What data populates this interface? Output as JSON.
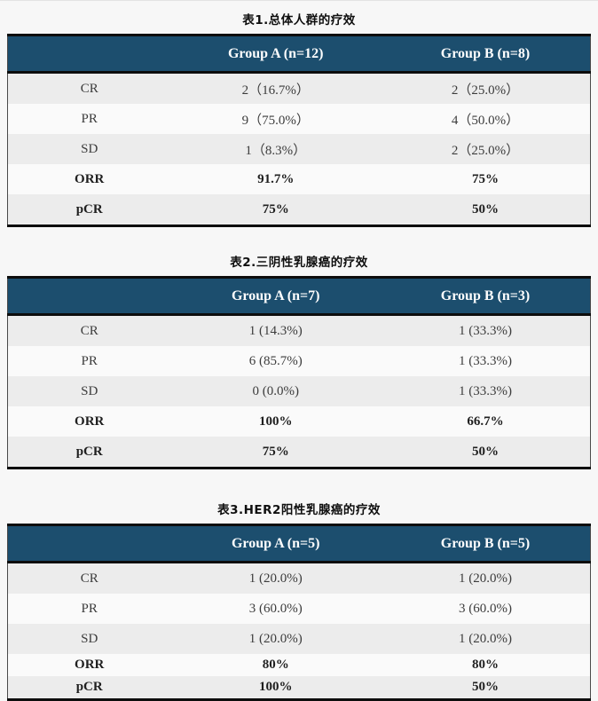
{
  "colors": {
    "header_bg": "#1c4e6e",
    "header_text": "#ffffff",
    "row_shaded": "#ececec",
    "row_plain": "#fafafa",
    "border_dark": "#0d0d0d",
    "body_text": "#3c3c3c",
    "page_bg": "#f7f7f7"
  },
  "tables": [
    {
      "title": "表1.总体人群的疗效",
      "columns": [
        "",
        "Group A (n=12)",
        "Group B (n=8)"
      ],
      "rows": [
        {
          "label": "CR",
          "a": "2（16.7%）",
          "b": "2（25.0%）"
        },
        {
          "label": "PR",
          "a": "9（75.0%）",
          "b": "4（50.0%）"
        },
        {
          "label": "SD",
          "a": "1（8.3%）",
          "b": "2（25.0%）"
        },
        {
          "label": "ORR",
          "a": "91.7%",
          "b": "75%"
        },
        {
          "label": "pCR",
          "a": "75%",
          "b": "50%"
        }
      ]
    },
    {
      "title": "表2.三阴性乳腺癌的疗效",
      "columns": [
        "",
        "Group A (n=7)",
        "Group B (n=3)"
      ],
      "rows": [
        {
          "label": "CR",
          "a": "1 (14.3%)",
          "b": "1 (33.3%)"
        },
        {
          "label": "PR",
          "a": "6 (85.7%)",
          "b": "1 (33.3%)"
        },
        {
          "label": "SD",
          "a": "0 (0.0%)",
          "b": "1 (33.3%)"
        },
        {
          "label": "ORR",
          "a": "100%",
          "b": "66.7%"
        },
        {
          "label": "pCR",
          "a": "75%",
          "b": "50%"
        }
      ]
    },
    {
      "title": "表3.HER2阳性乳腺癌的疗效",
      "columns": [
        "",
        "Group A (n=5)",
        "Group B (n=5)"
      ],
      "rows": [
        {
          "label": "CR",
          "a": "1 (20.0%)",
          "b": "1 (20.0%)"
        },
        {
          "label": "PR",
          "a": "3 (60.0%)",
          "b": "3 (60.0%)"
        },
        {
          "label": "SD",
          "a": "1 (20.0%)",
          "b": "1 (20.0%)"
        },
        {
          "label": "ORR",
          "a": "80%",
          "b": "80%"
        },
        {
          "label": "pCR",
          "a": "100%",
          "b": "50%"
        }
      ]
    }
  ]
}
